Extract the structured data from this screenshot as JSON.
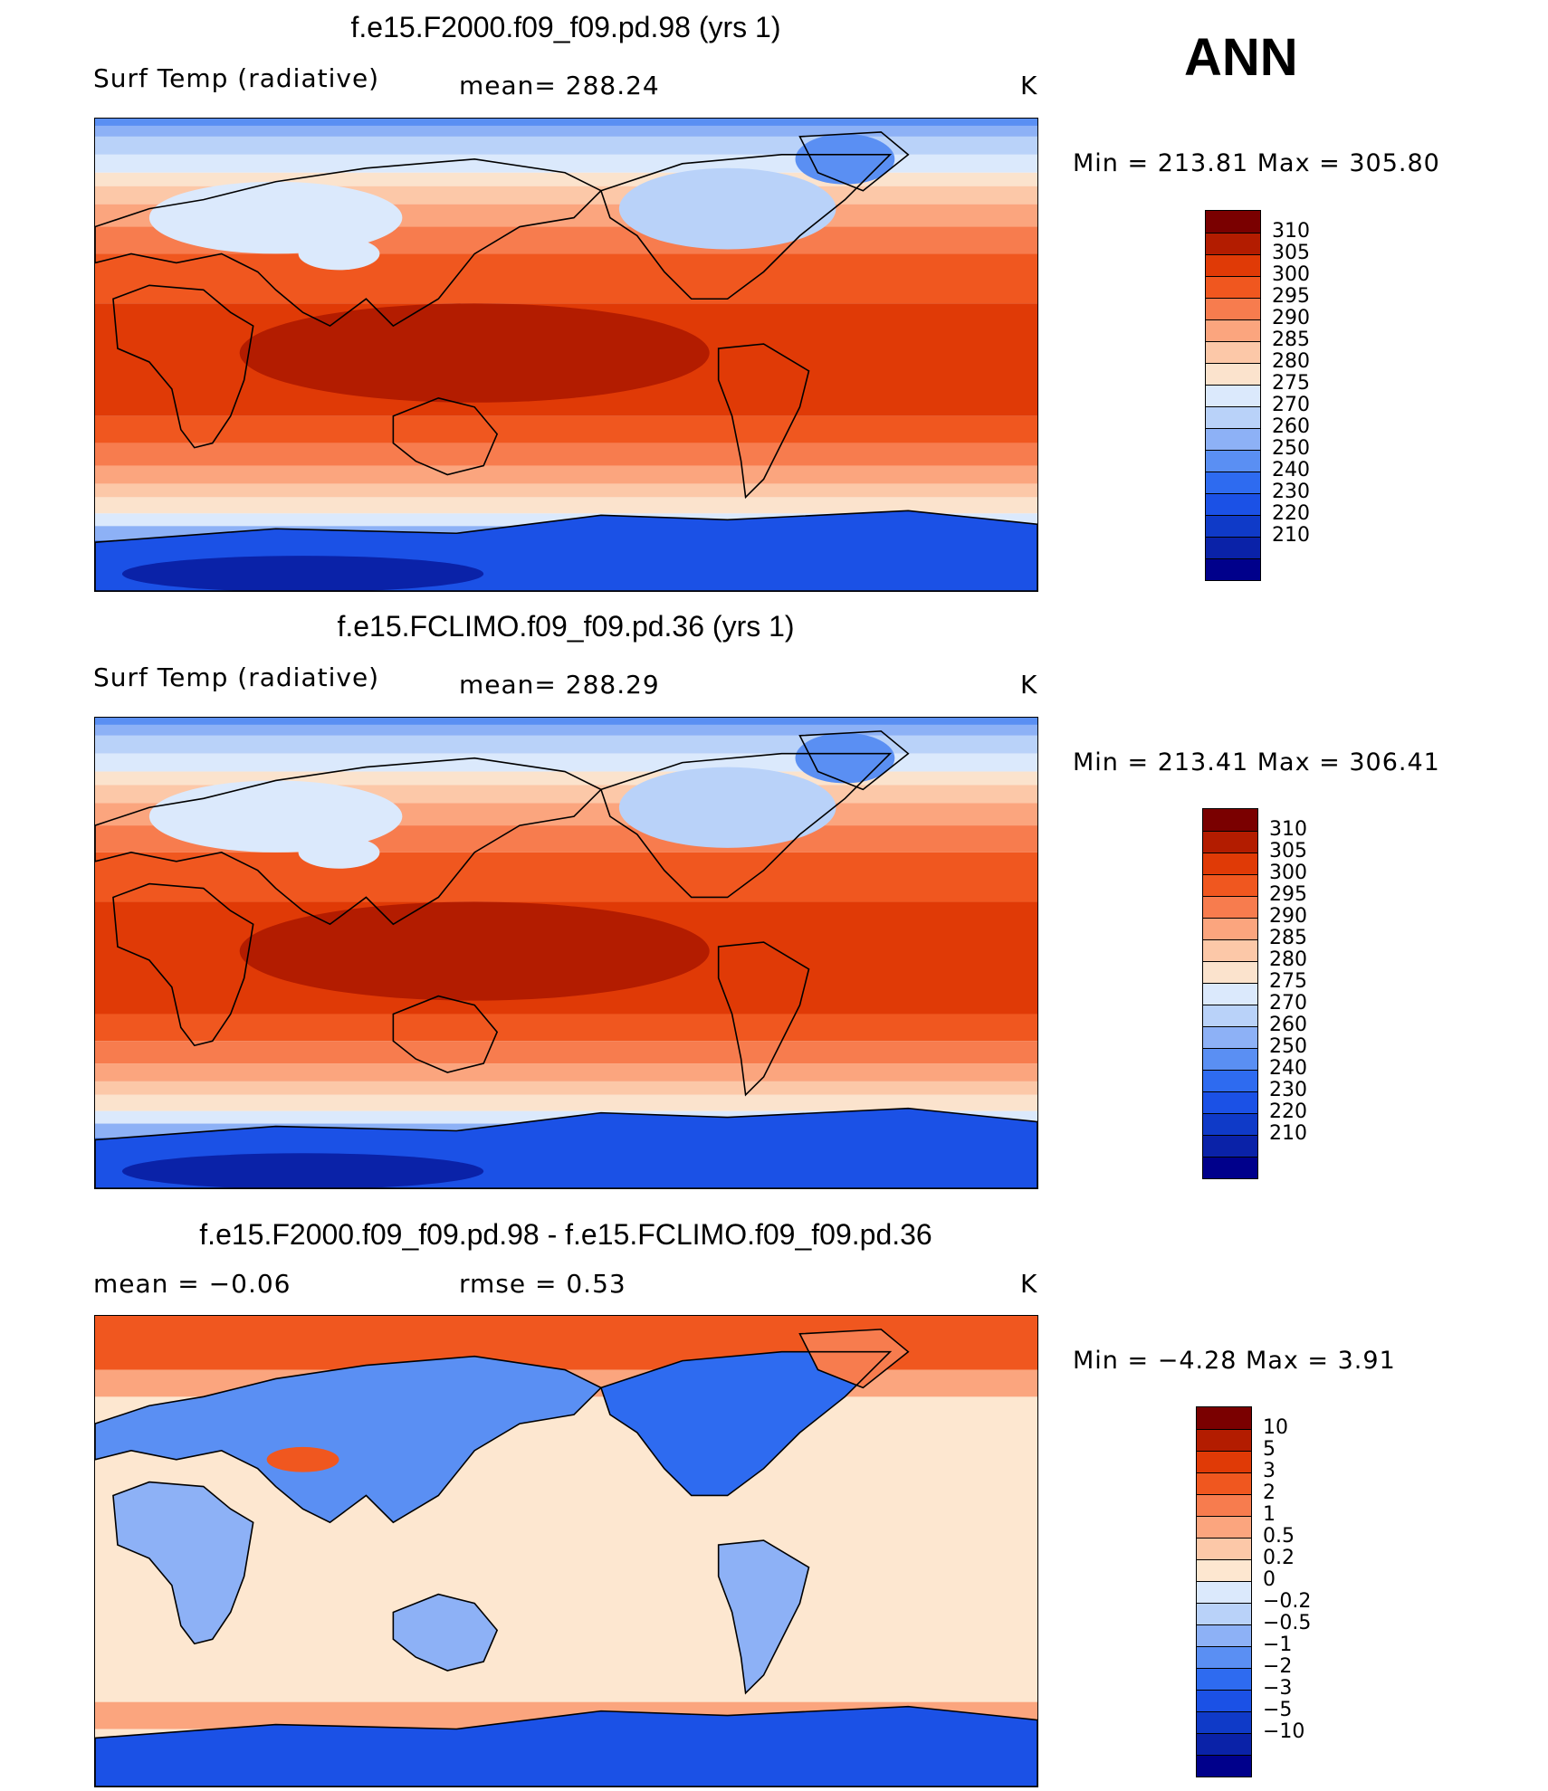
{
  "season": "ANN",
  "palettes": {
    "temp": [
      "#00008b",
      "#0a22a8",
      "#0f3ac8",
      "#1b51e6",
      "#2e6bf0",
      "#5a8ff3",
      "#8db1f6",
      "#b9d2f9",
      "#dbe9fc",
      "#fbe3cd",
      "#fcc8a8",
      "#fba57e",
      "#f77c4e",
      "#f0571f",
      "#e03a06",
      "#b31c00",
      "#7a0000"
    ],
    "diff": [
      "#00008b",
      "#0a22a8",
      "#0f3ac8",
      "#1b51e6",
      "#2e6bf0",
      "#5a8ff3",
      "#8db1f6",
      "#b9d2f9",
      "#dbe9fc",
      "#fde7d0",
      "#fcc8a8",
      "#fba57e",
      "#f77c4e",
      "#f0571f",
      "#e03a06",
      "#b31c00",
      "#7a0000"
    ]
  },
  "panels": [
    {
      "title": "f.e15.F2000.f09_f09.pd.98 (yrs 1)",
      "left_label": "Surf Temp (radiative)",
      "center_label": "mean=  288.24",
      "units": "K",
      "min_label": "Min  =  213.81  Max  =  305.80",
      "colorbar": {
        "palette": "temp",
        "levels": [
          "310",
          "305",
          "300",
          "295",
          "290",
          "285",
          "280",
          "275",
          "270",
          "260",
          "250",
          "240",
          "230",
          "220",
          "210"
        ]
      },
      "map_kind": "temp"
    },
    {
      "title": "f.e15.FCLIMO.f09_f09.pd.36 (yrs 1)",
      "left_label": "Surf Temp (radiative)",
      "center_label": "mean=  288.29",
      "units": "K",
      "min_label": "Min  =  213.41  Max  =  306.41",
      "colorbar": {
        "palette": "temp",
        "levels": [
          "310",
          "305",
          "300",
          "295",
          "290",
          "285",
          "280",
          "275",
          "270",
          "260",
          "250",
          "240",
          "230",
          "220",
          "210"
        ]
      },
      "map_kind": "temp"
    },
    {
      "title": "f.e15.F2000.f09_f09.pd.98 - f.e15.FCLIMO.f09_f09.pd.36",
      "left_label": "mean  =     −0.06",
      "center_label": "rmse  =      0.53",
      "units": "K",
      "min_label": "Min  =      −4.28  Max  =         3.91",
      "colorbar": {
        "palette": "diff",
        "levels": [
          "10",
          "5",
          "3",
          "2",
          "1",
          "0.5",
          "0.2",
          "0",
          "−0.2",
          "−0.5",
          "−1",
          "−2",
          "−3",
          "−5",
          "−10"
        ]
      },
      "map_kind": "diff"
    }
  ],
  "chart_data": {
    "type": "heatmap",
    "figure_title": "ANN",
    "variable": "Surf Temp (radiative)",
    "units": "K",
    "panels": [
      {
        "case": "f.e15.F2000.f09_f09.pd.98 (yrs 1)",
        "mean": 288.24,
        "min": 213.81,
        "max": 305.8,
        "levels": [
          210,
          220,
          230,
          240,
          250,
          260,
          270,
          275,
          280,
          285,
          290,
          295,
          300,
          305,
          310
        ]
      },
      {
        "case": "f.e15.FCLIMO.f09_f09.pd.36 (yrs 1)",
        "mean": 288.29,
        "min": 213.41,
        "max": 306.41,
        "levels": [
          210,
          220,
          230,
          240,
          250,
          260,
          270,
          275,
          280,
          285,
          290,
          295,
          300,
          305,
          310
        ]
      },
      {
        "case": "f.e15.F2000.f09_f09.pd.98 - f.e15.FCLIMO.f09_f09.pd.36",
        "mean": -0.06,
        "rmse": 0.53,
        "min": -4.28,
        "max": 3.91,
        "levels": [
          -10,
          -5,
          -3,
          -2,
          -1,
          -0.5,
          -0.2,
          0,
          0.2,
          0.5,
          1,
          2,
          3,
          5,
          10
        ]
      }
    ]
  }
}
